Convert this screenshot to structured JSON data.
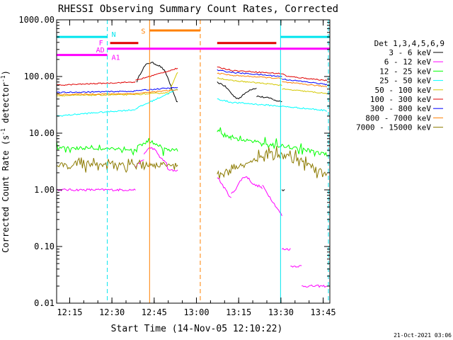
{
  "chart_data": {
    "type": "line",
    "title": "RHESSI Observing Summary Count Rates, Corrected",
    "xlabel": "Start Time (14-Nov-05 12:10:22)",
    "ylabel_main": "Corrected Count Rate (s",
    "ylabel_sup1": "-1",
    "ylabel_mid": " detector",
    "ylabel_sup2": "-1",
    "ylabel_end": ")",
    "yscale": "log",
    "ylim": [
      0.01,
      1000
    ],
    "xlim_minutes": [
      0,
      97
    ],
    "yticks": [
      "1000.00",
      "100.00",
      "10.00",
      "1.00",
      "0.10",
      "0.01"
    ],
    "xticks": [
      "12:15",
      "12:30",
      "12:45",
      "13:00",
      "13:15",
      "13:30",
      "13:45"
    ],
    "timestamp": "21-Oct-2021 03:06",
    "legend_title": "Det 1,3,4,5,6,9",
    "legend_position": "right",
    "series": [
      {
        "name": "3 - 6 keV",
        "color": "#000000"
      },
      {
        "name": "6 - 12 keV",
        "color": "#ff00ff"
      },
      {
        "name": "12 - 25 keV",
        "color": "#00ff00"
      },
      {
        "name": "25 - 50 keV",
        "color": "#00ffff"
      },
      {
        "name": "50 - 100 keV",
        "color": "#d4c800"
      },
      {
        "name": "100 - 300 keV",
        "color": "#e00000"
      },
      {
        "name": "300 - 800 keV",
        "color": "#0000ff"
      },
      {
        "name": "800 - 7000 keV",
        "color": "#ff8000"
      },
      {
        "name": "7000 - 15000 keV",
        "color": "#8c7a00"
      }
    ],
    "flags": [
      {
        "label": "N",
        "color": "#00e5ee"
      },
      {
        "label": "F",
        "color": "#ff00ff"
      },
      {
        "label": "AD",
        "color": "#ff00ff"
      },
      {
        "label": "A1",
        "color": "#ff00ff"
      },
      {
        "label": "S",
        "color": "#ff8000"
      }
    ]
  }
}
